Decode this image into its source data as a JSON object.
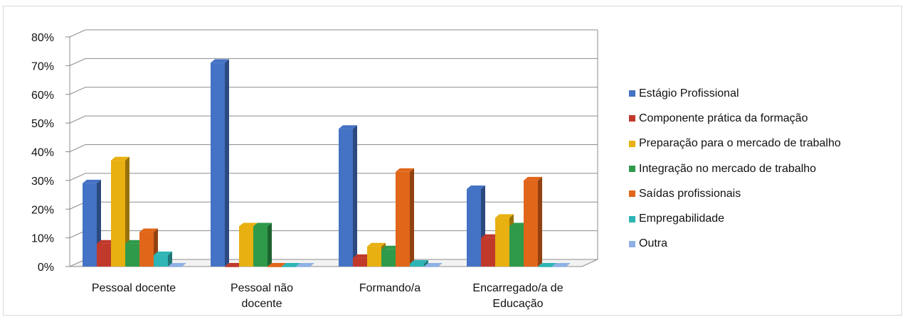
{
  "chart_data": {
    "type": "bar",
    "title": "",
    "xlabel": "",
    "ylabel": "",
    "ylim": [
      0,
      0.8
    ],
    "y_ticks": [
      "0%",
      "10%",
      "20%",
      "30%",
      "40%",
      "50%",
      "60%",
      "70%",
      "80%"
    ],
    "grid": true,
    "legend_position": "right",
    "categories": [
      [
        "Pessoal docente"
      ],
      [
        "Pessoal não",
        "docente"
      ],
      [
        "Formando/a"
      ],
      [
        "Encarregado/a de",
        "Educação"
      ]
    ],
    "series": [
      {
        "name": "Estágio Profissional",
        "color": "#4472c4",
        "values": [
          0.29,
          0.71,
          0.48,
          0.27
        ]
      },
      {
        "name": "Componente prática da formação",
        "color": "#c0392b",
        "values": [
          0.08,
          0.0,
          0.03,
          0.1
        ]
      },
      {
        "name": "Preparação para o mercado de trabalho",
        "color": "#e8b010",
        "values": [
          0.37,
          0.14,
          0.07,
          0.17
        ]
      },
      {
        "name": "Integração no mercado de trabalho",
        "color": "#2e9a4a",
        "values": [
          0.08,
          0.14,
          0.06,
          0.14
        ]
      },
      {
        "name": "Saídas profissionais",
        "color": "#e0661a",
        "values": [
          0.12,
          0.0,
          0.33,
          0.3
        ]
      },
      {
        "name": "Empregabilidade",
        "color": "#2eb5b5",
        "values": [
          0.04,
          0.0,
          0.01,
          0.0
        ]
      },
      {
        "name": "Outra",
        "color": "#8fb0e6",
        "values": [
          0.0,
          0.0,
          0.0,
          0.0
        ]
      }
    ]
  }
}
